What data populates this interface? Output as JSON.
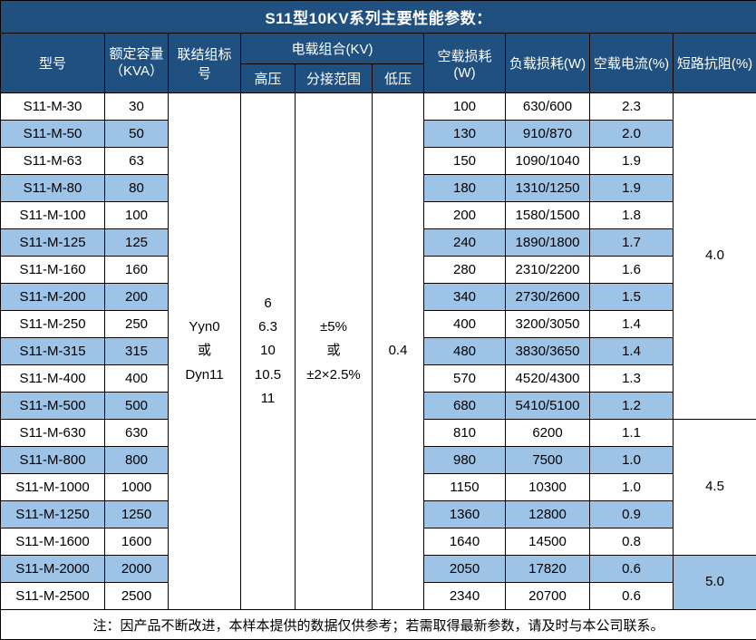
{
  "title": "S11型10KV系列主要性能参数：",
  "header": {
    "model": "型号",
    "capacity": "额定容量\n（KVA）",
    "vector_group": "联结组标号",
    "voltage_combo": "电载组合(KV)",
    "hv": "高压",
    "tap_range": "分接范围",
    "lv": "低压",
    "no_load_loss": "空载损耗(W)",
    "load_loss": "负载损耗(W)",
    "no_load_current": "空载电流(%)",
    "impedance": "短路抗阻(%)"
  },
  "merged": {
    "vector_group": "Yyn0\n或\nDyn11",
    "hv_values": "6\n6.3\n10\n10.5\n11",
    "tap_range": "±5%\n或\n±2×2.5%",
    "lv_value": "0.4"
  },
  "impedance_groups": [
    {
      "value": "4.0",
      "rows": 12
    },
    {
      "value": "4.5",
      "rows": 5
    },
    {
      "value": "5.0",
      "rows": 2
    }
  ],
  "rows": [
    {
      "model": "S11-M-30",
      "capacity": "30",
      "no_load_loss": "100",
      "load_loss": "630/600",
      "no_load_current": "2.3"
    },
    {
      "model": "S11-M-50",
      "capacity": "50",
      "no_load_loss": "130",
      "load_loss": "910/870",
      "no_load_current": "2.0"
    },
    {
      "model": "S11-M-63",
      "capacity": "63",
      "no_load_loss": "150",
      "load_loss": "1090/1040",
      "no_load_current": "1.9"
    },
    {
      "model": "S11-M-80",
      "capacity": "80",
      "no_load_loss": "180",
      "load_loss": "1310/1250",
      "no_load_current": "1.9"
    },
    {
      "model": "S11-M-100",
      "capacity": "100",
      "no_load_loss": "200",
      "load_loss": "1580/1500",
      "no_load_current": "1.8"
    },
    {
      "model": "S11-M-125",
      "capacity": "125",
      "no_load_loss": "240",
      "load_loss": "1890/1800",
      "no_load_current": "1.7"
    },
    {
      "model": "S11-M-160",
      "capacity": "160",
      "no_load_loss": "280",
      "load_loss": "2310/2200",
      "no_load_current": "1.6"
    },
    {
      "model": "S11-M-200",
      "capacity": "200",
      "no_load_loss": "340",
      "load_loss": "2730/2600",
      "no_load_current": "1.5"
    },
    {
      "model": "S11-M-250",
      "capacity": "250",
      "no_load_loss": "400",
      "load_loss": "3200/3050",
      "no_load_current": "1.4"
    },
    {
      "model": "S11-M-315",
      "capacity": "315",
      "no_load_loss": "480",
      "load_loss": "3830/3650",
      "no_load_current": "1.4"
    },
    {
      "model": "S11-M-400",
      "capacity": "400",
      "no_load_loss": "570",
      "load_loss": "4520/4300",
      "no_load_current": "1.3"
    },
    {
      "model": "S11-M-500",
      "capacity": "500",
      "no_load_loss": "680",
      "load_loss": "5410/5100",
      "no_load_current": "1.2"
    },
    {
      "model": "S11-M-630",
      "capacity": "630",
      "no_load_loss": "810",
      "load_loss": "6200",
      "no_load_current": "1.1"
    },
    {
      "model": "S11-M-800",
      "capacity": "800",
      "no_load_loss": "980",
      "load_loss": "7500",
      "no_load_current": "1.0"
    },
    {
      "model": "S11-M-1000",
      "capacity": "1000",
      "no_load_loss": "1150",
      "load_loss": "10300",
      "no_load_current": "1.0"
    },
    {
      "model": "S11-M-1250",
      "capacity": "1250",
      "no_load_loss": "1360",
      "load_loss": "12800",
      "no_load_current": "0.9"
    },
    {
      "model": "S11-M-1600",
      "capacity": "1600",
      "no_load_loss": "1640",
      "load_loss": "14500",
      "no_load_current": "0.8"
    },
    {
      "model": "S11-M-2000",
      "capacity": "2000",
      "no_load_loss": "2050",
      "load_loss": "17820",
      "no_load_current": "0.6"
    },
    {
      "model": "S11-M-2500",
      "capacity": "2500",
      "no_load_loss": "2340",
      "load_loss": "20700",
      "no_load_current": "0.6"
    }
  ],
  "note": "注：因产品不断改进，本样本提供的数据仅供参考；若需取得最新参数，请及时与本公司联系。",
  "colors": {
    "header_bg": "#1F5080",
    "header_text": "#FFFFFF",
    "row_alt_bg": "#9DC3E6",
    "row_bg": "#FFFFFF",
    "border": "#000000"
  }
}
